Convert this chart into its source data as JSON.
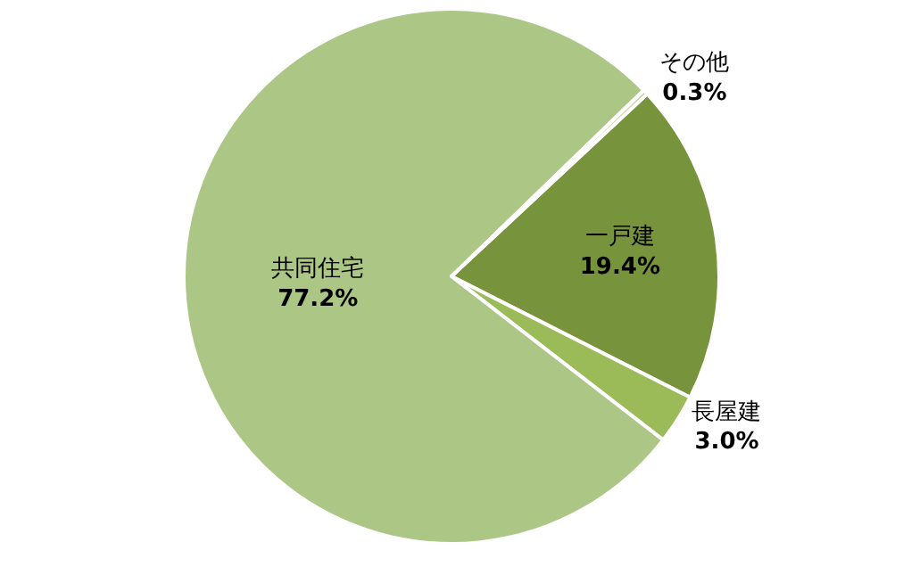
{
  "chart_data": {
    "type": "pie",
    "categories": [
      "一戸建",
      "長屋建",
      "共同住宅",
      "その他"
    ],
    "values": [
      19.4,
      3.0,
      77.2,
      0.3
    ],
    "value_labels": [
      "19.4%",
      "3.0%",
      "77.2%",
      "0.3%"
    ],
    "colors": [
      "#77933c",
      "#9bbb59",
      "#abc685",
      "#c3d69b"
    ],
    "legend": false
  }
}
